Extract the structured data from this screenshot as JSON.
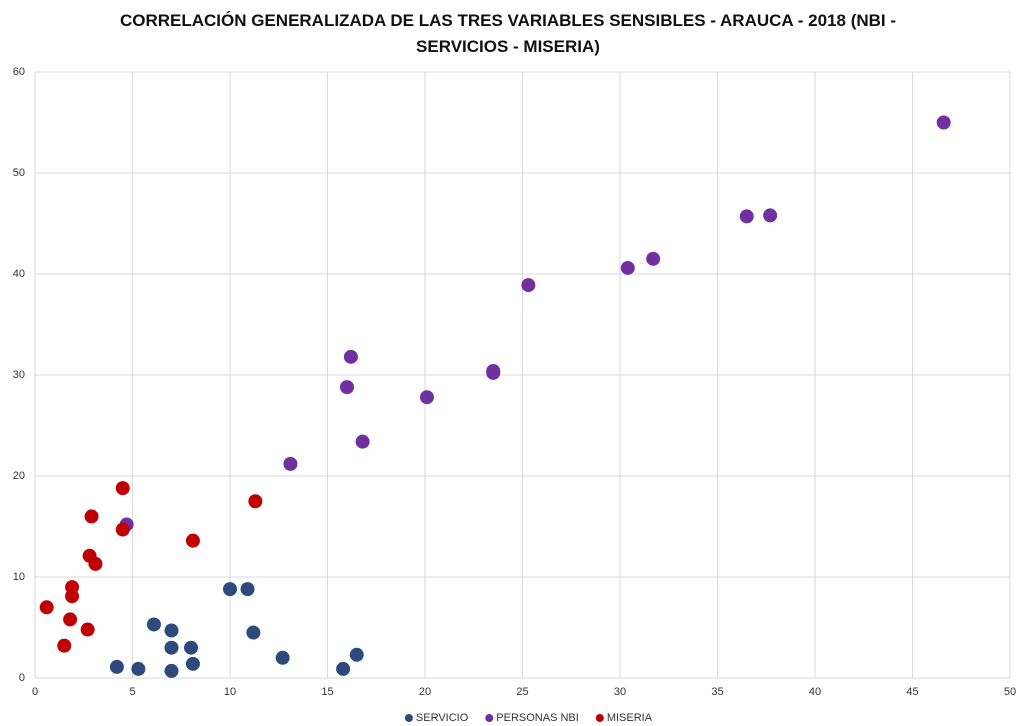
{
  "chart_data": {
    "type": "scatter",
    "title": "CORRELACIÓN GENERALIZADA DE LAS TRES VARIABLES SENSIBLES - ARAUCA - 2018 (NBI - SERVICIOS - MISERIA)",
    "xlim": [
      0,
      50
    ],
    "xticks": [
      0,
      5,
      10,
      15,
      20,
      25,
      30,
      35,
      40,
      45,
      50
    ],
    "ylim": [
      0,
      60
    ],
    "yticks": [
      0,
      10,
      20,
      30,
      40,
      50,
      60
    ],
    "grid": true,
    "legend": "bottom",
    "series": [
      {
        "name": "SERVICIO",
        "color": "#2e4a7d",
        "x": [
          4.2,
          5.3,
          6.1,
          7.0,
          7.0,
          7.0,
          8.0,
          8.1,
          10.0,
          10.9,
          11.2,
          12.7,
          15.8,
          16.5
        ],
        "values": [
          1.1,
          0.9,
          5.3,
          4.7,
          3.0,
          0.7,
          3.0,
          1.4,
          8.8,
          8.8,
          4.5,
          2.0,
          0.9,
          2.3
        ]
      },
      {
        "name": "PERSONAS NBI",
        "color": "#7030a0",
        "x": [
          4.7,
          13.1,
          16.0,
          16.2,
          16.8,
          20.1,
          23.5,
          23.5,
          25.3,
          30.4,
          31.7,
          36.5,
          37.7,
          46.6
        ],
        "values": [
          15.2,
          21.2,
          28.8,
          31.8,
          23.4,
          27.8,
          30.2,
          30.4,
          38.9,
          40.6,
          41.5,
          45.7,
          45.8,
          55.0
        ]
      },
      {
        "name": "MISERIA",
        "color": "#c00000",
        "x": [
          0.6,
          1.5,
          1.8,
          1.9,
          1.9,
          2.7,
          2.8,
          2.9,
          3.1,
          4.5,
          4.5,
          8.1,
          11.3
        ],
        "values": [
          7.0,
          3.2,
          5.8,
          9.0,
          8.1,
          4.8,
          12.1,
          16.0,
          11.3,
          18.8,
          14.7,
          13.6,
          17.5
        ]
      }
    ]
  }
}
